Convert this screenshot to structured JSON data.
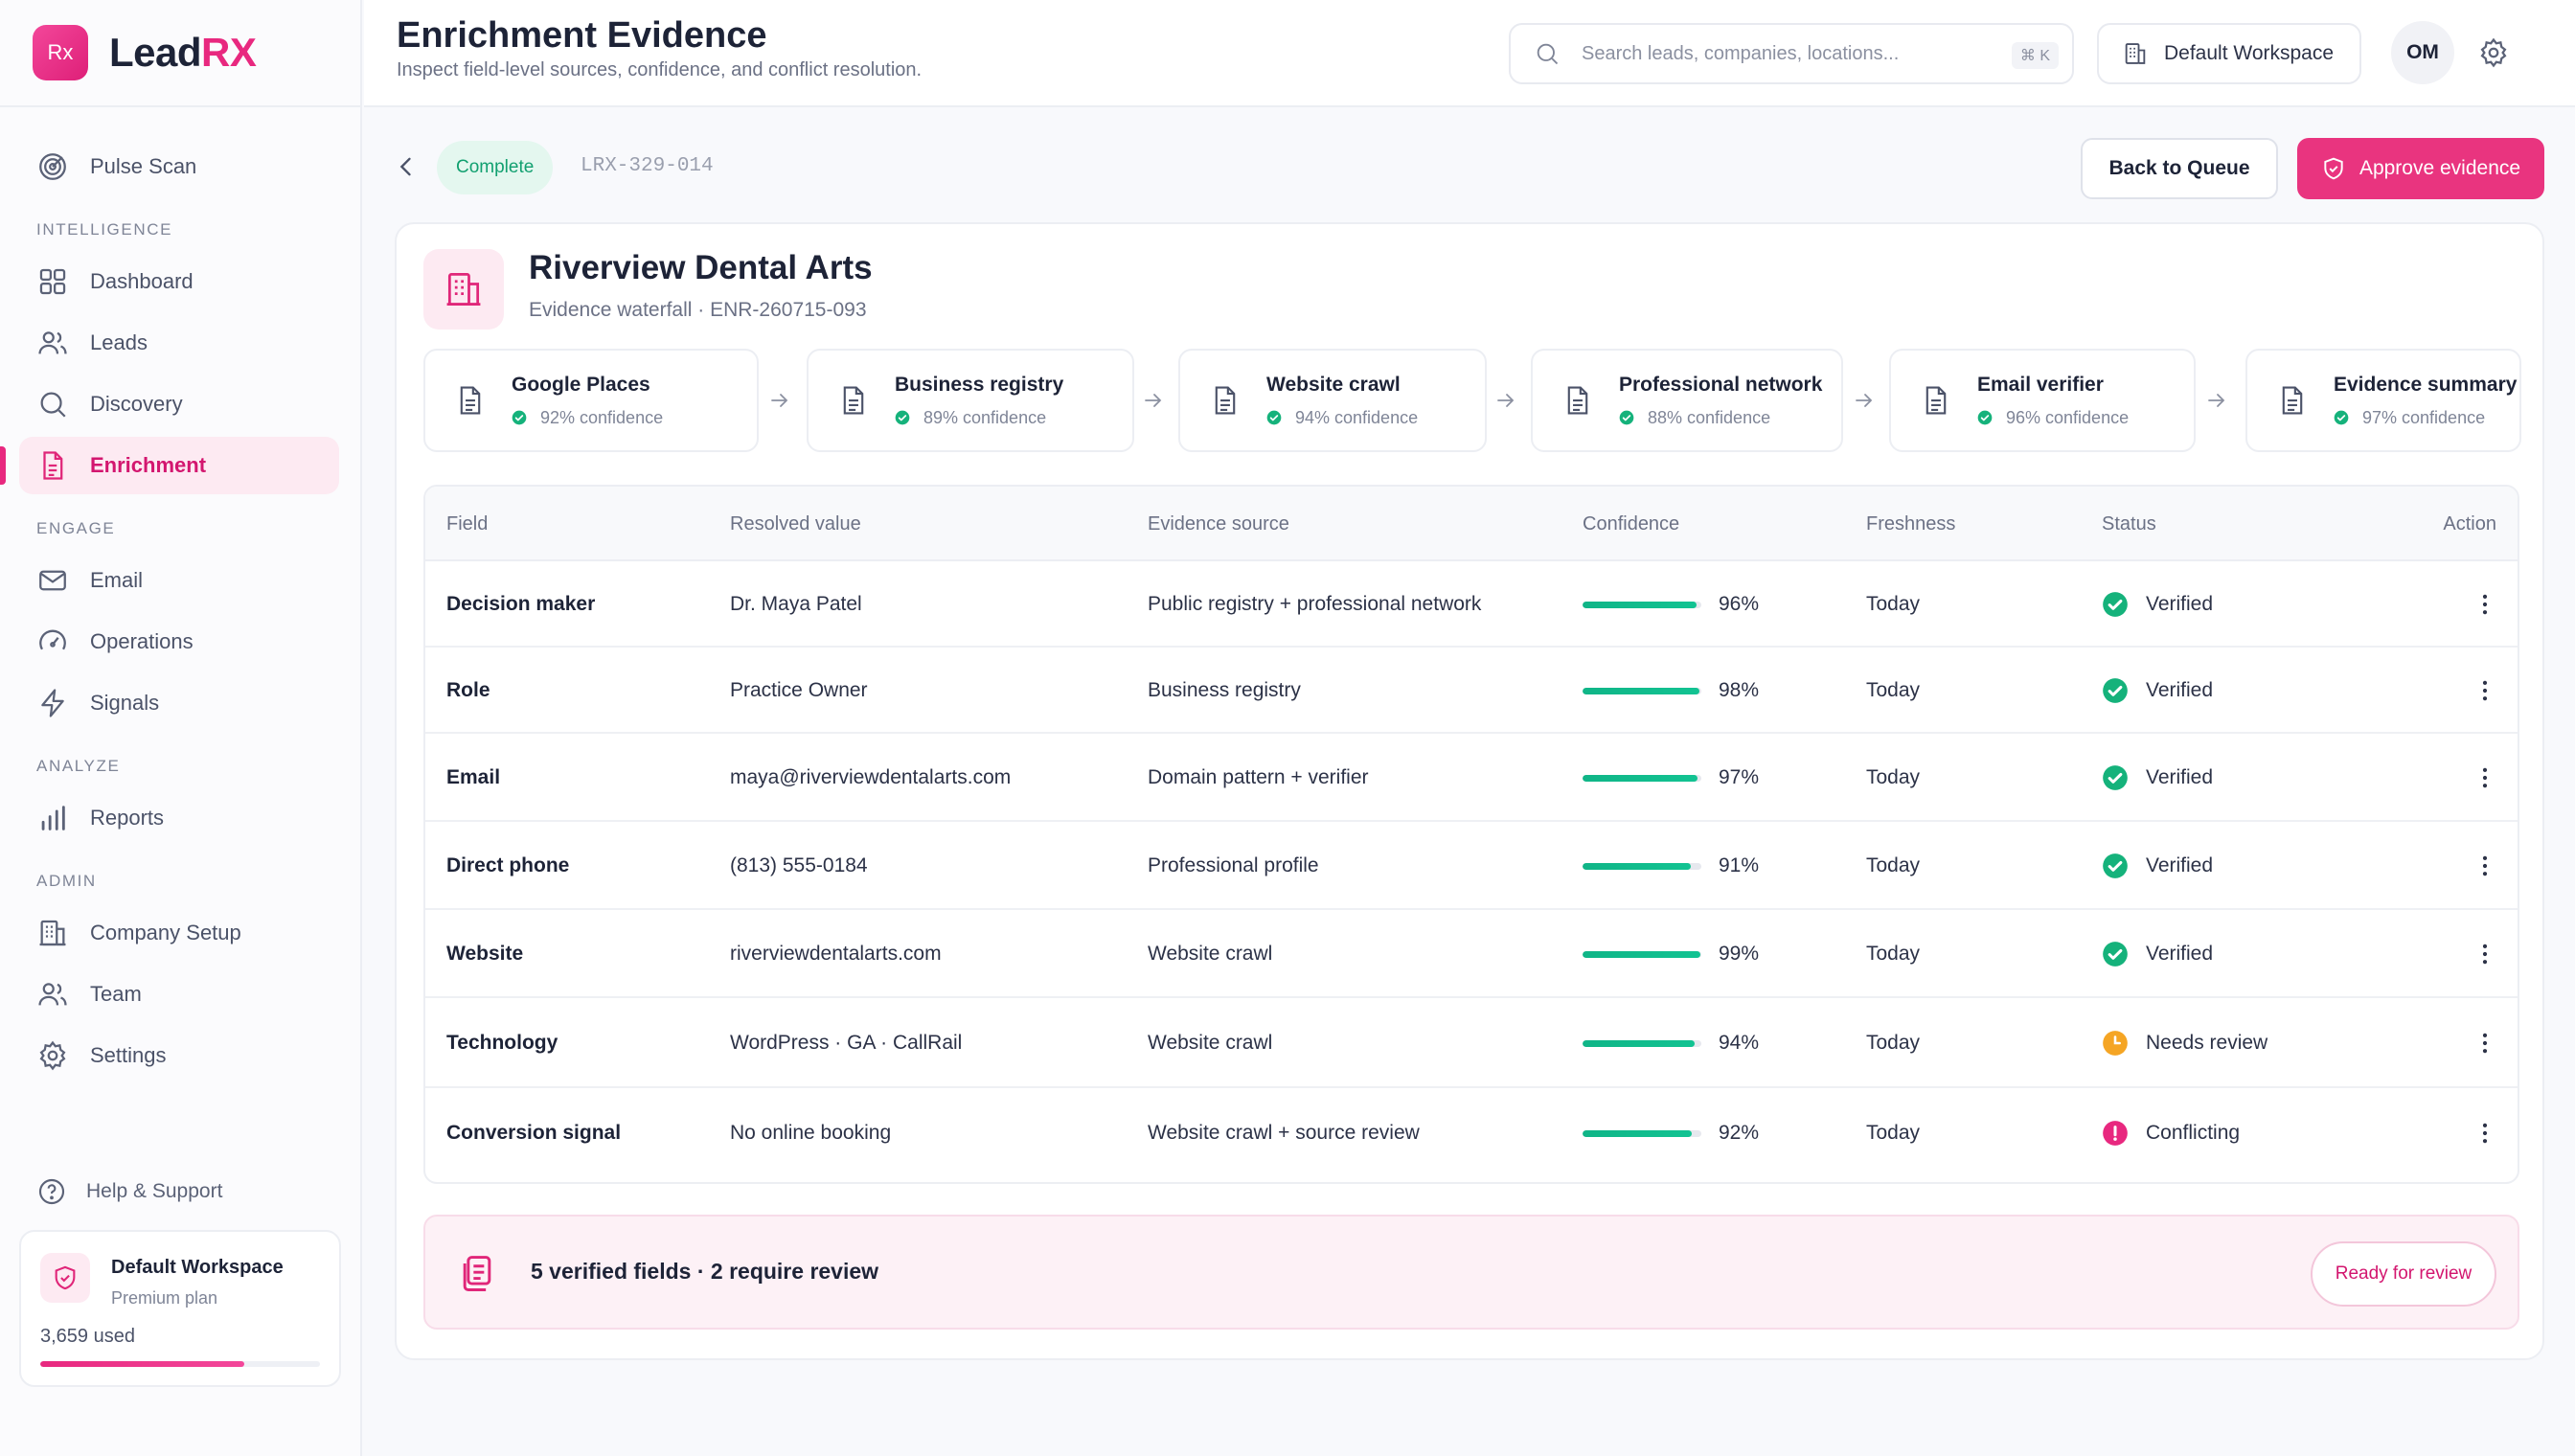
{
  "app": {
    "logo_mark": "Rx",
    "name_part1": "Lead",
    "name_part2": "RX"
  },
  "sidebar": {
    "top_item": {
      "label": "Pulse Scan",
      "icon": "radar-icon"
    },
    "sections": [
      {
        "title": "INTELLIGENCE",
        "items": [
          {
            "label": "Dashboard",
            "icon": "grid-icon"
          },
          {
            "label": "Leads",
            "icon": "users-icon"
          },
          {
            "label": "Discovery",
            "icon": "search-icon"
          },
          {
            "label": "Enrichment",
            "icon": "document-icon",
            "active": true
          }
        ]
      },
      {
        "title": "ENGAGE",
        "items": [
          {
            "label": "Email",
            "icon": "mail-icon"
          },
          {
            "label": "Operations",
            "icon": "gauge-icon"
          },
          {
            "label": "Signals",
            "icon": "bolt-icon"
          }
        ]
      },
      {
        "title": "ANALYZE",
        "items": [
          {
            "label": "Reports",
            "icon": "bar-chart-icon"
          }
        ]
      },
      {
        "title": "ADMIN",
        "items": [
          {
            "label": "Company Setup",
            "icon": "building-icon"
          },
          {
            "label": "Team",
            "icon": "team-icon"
          },
          {
            "label": "Settings",
            "icon": "gear-icon"
          }
        ]
      }
    ],
    "help_label": "Help & Support",
    "workspace": {
      "name": "Default Workspace",
      "plan": "Premium plan",
      "used": "3,659 used",
      "usage_fraction": 0.73
    }
  },
  "header": {
    "title": "Enrichment Evidence",
    "subtitle": "Inspect field-level sources, confidence, and conflict resolution.",
    "search_placeholder": "Search leads, companies, locations...",
    "search_shortcut": "⌘ K",
    "workspace_label": "Default Workspace",
    "avatar_initials": "OM"
  },
  "toolbar": {
    "status": "Complete",
    "record_id": "LRX-329-014",
    "back_label": "Back to Queue",
    "approve_label": "Approve evidence"
  },
  "company": {
    "name": "Riverview Dental Arts",
    "subtitle": "Evidence waterfall · ENR-260715-093"
  },
  "waterfall": [
    {
      "title": "Google Places",
      "confidence": "92% confidence"
    },
    {
      "title": "Business registry",
      "confidence": "89% confidence"
    },
    {
      "title": "Website crawl",
      "confidence": "94% confidence"
    },
    {
      "title": "Professional network",
      "confidence": "88% confidence"
    },
    {
      "title": "Email verifier",
      "confidence": "96% confidence"
    },
    {
      "title": "Evidence summary",
      "confidence": "97% confidence"
    }
  ],
  "table": {
    "columns": [
      "Field",
      "Resolved value",
      "Evidence source",
      "Confidence",
      "Freshness",
      "Status",
      "Action"
    ],
    "rows": [
      {
        "field": "Decision maker",
        "value": "Dr. Maya Patel",
        "source": "Public registry + professional network",
        "confidence": 96,
        "confidence_label": "96%",
        "freshness": "Today",
        "status": "Verified",
        "status_type": "verified"
      },
      {
        "field": "Role",
        "value": "Practice Owner",
        "source": "Business registry",
        "confidence": 98,
        "confidence_label": "98%",
        "freshness": "Today",
        "status": "Verified",
        "status_type": "verified"
      },
      {
        "field": "Email",
        "value": "maya@riverviewdentalarts.com",
        "source": "Domain pattern + verifier",
        "confidence": 97,
        "confidence_label": "97%",
        "freshness": "Today",
        "status": "Verified",
        "status_type": "verified"
      },
      {
        "field": "Direct phone",
        "value": "(813) 555-0184",
        "source": "Professional profile",
        "confidence": 91,
        "confidence_label": "91%",
        "freshness": "Today",
        "status": "Verified",
        "status_type": "verified"
      },
      {
        "field": "Website",
        "value": "riverviewdentalarts.com",
        "source": "Website crawl",
        "confidence": 99,
        "confidence_label": "99%",
        "freshness": "Today",
        "status": "Verified",
        "status_type": "verified"
      },
      {
        "field": "Technology",
        "value": "WordPress · GA · CallRail",
        "source": "Website crawl",
        "confidence": 94,
        "confidence_label": "94%",
        "freshness": "Today",
        "status": "Needs review",
        "status_type": "review"
      },
      {
        "field": "Conversion signal",
        "value": "No online booking",
        "source": "Website crawl + source review",
        "confidence": 92,
        "confidence_label": "92%",
        "freshness": "Today",
        "status": "Conflicting",
        "status_type": "conflict"
      }
    ]
  },
  "summary": {
    "text": "5 verified fields · 2 require review",
    "button": "Ready for review"
  },
  "colors": {
    "brand": "#e8287f",
    "verified": "#15b27b",
    "review": "#f5a524",
    "conflict": "#e8287f"
  }
}
